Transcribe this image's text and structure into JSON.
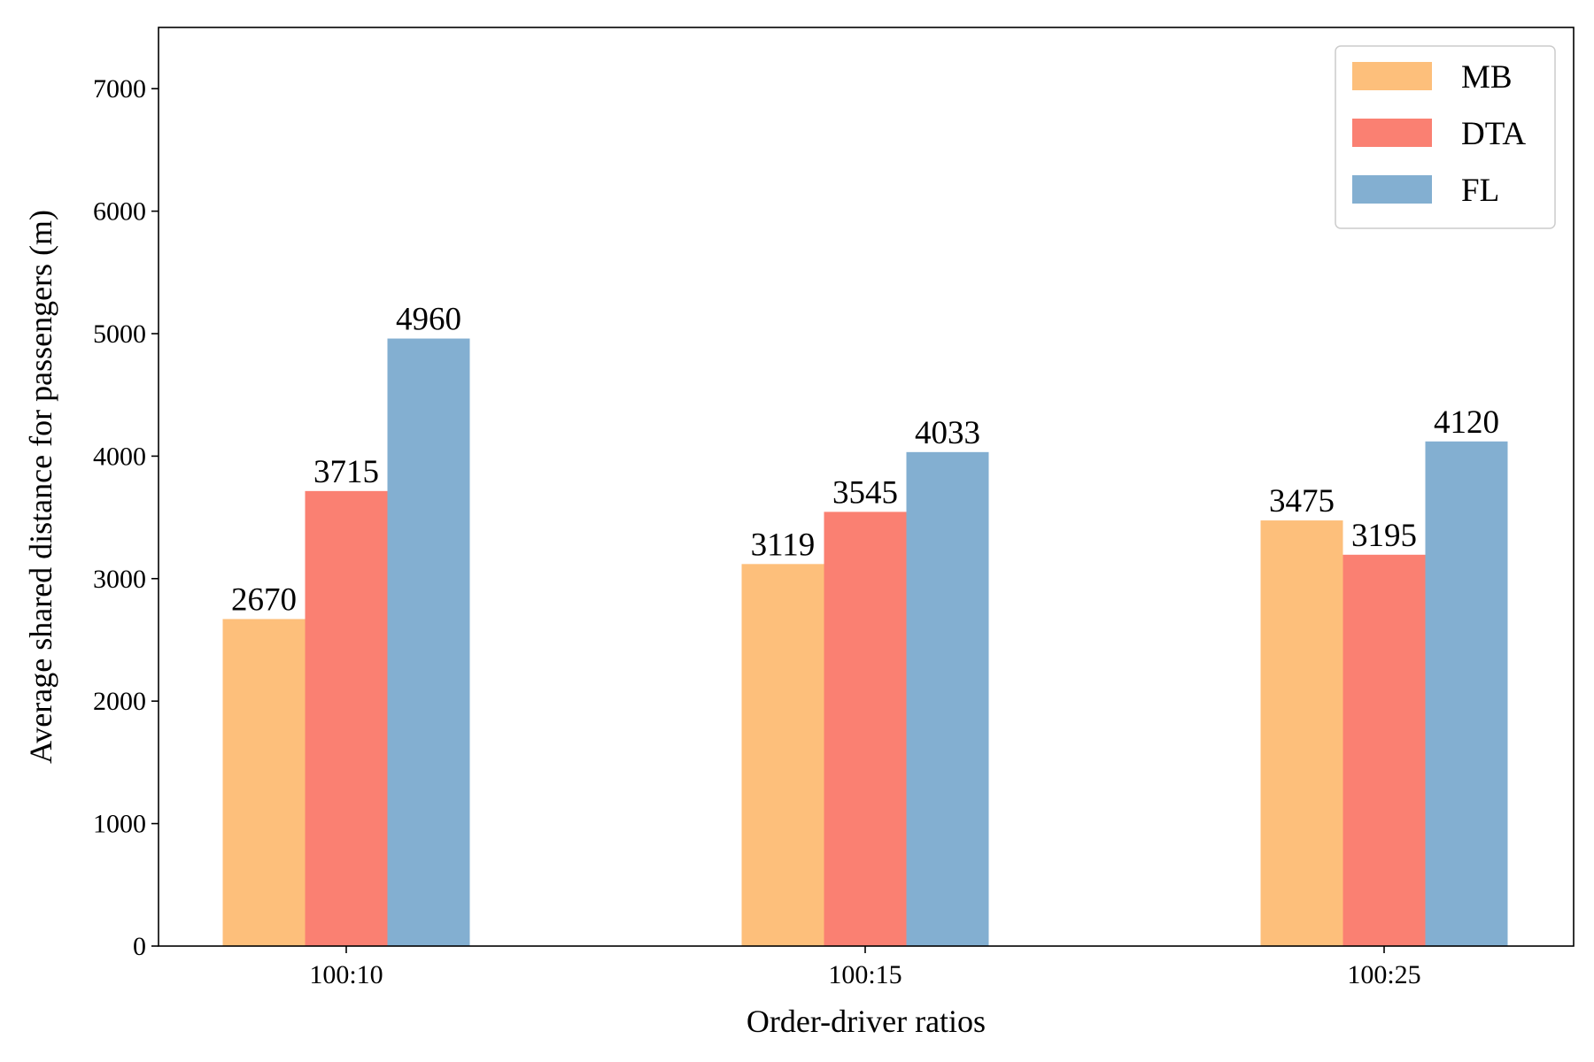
{
  "chart_data": {
    "type": "bar",
    "categories": [
      "100:10",
      "100:15",
      "100:25"
    ],
    "series": [
      {
        "name": "MB",
        "color": "#FDBF7B",
        "values": [
          2670,
          3119,
          3475
        ]
      },
      {
        "name": "DTA",
        "color": "#FA8072",
        "values": [
          3715,
          3545,
          3195
        ]
      },
      {
        "name": "FL",
        "color": "#83AFD1",
        "values": [
          4960,
          4033,
          4120
        ]
      }
    ],
    "title": "",
    "xlabel": "Order-driver ratios",
    "ylabel": "Average shared distance for passengers (m)",
    "ylim": [
      0,
      7500
    ],
    "yticks": [
      0,
      1000,
      2000,
      3000,
      4000,
      5000,
      6000,
      7000
    ],
    "grid": false,
    "legend_position": "top-right"
  }
}
